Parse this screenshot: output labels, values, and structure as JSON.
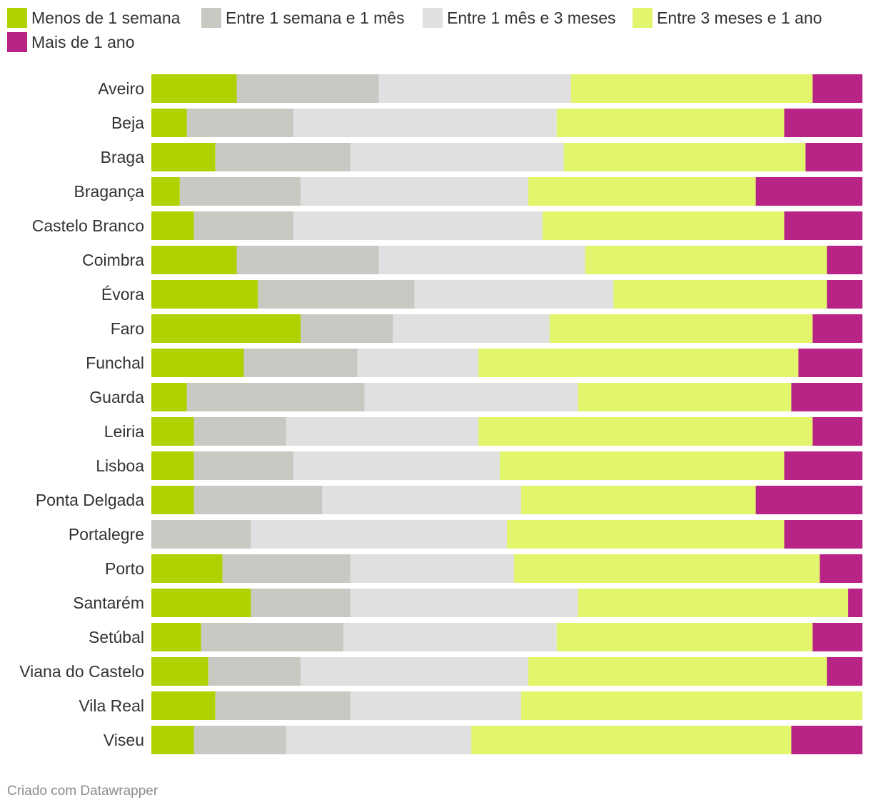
{
  "chart_data": {
    "type": "bar",
    "orientation": "horizontal",
    "stacked": true,
    "normalized_percent": true,
    "xlim": [
      0,
      100
    ],
    "legend_position": "top-left",
    "categories": [
      "Aveiro",
      "Beja",
      "Braga",
      "Bragança",
      "Castelo Branco",
      "Coimbra",
      "Évora",
      "Faro",
      "Funchal",
      "Guarda",
      "Leiria",
      "Lisboa",
      "Ponta Delgada",
      "Portalegre",
      "Porto",
      "Santarém",
      "Setúbal",
      "Viana do Castelo",
      "Vila Real",
      "Viseu"
    ],
    "series": [
      {
        "name": "Menos de 1 semana",
        "color": "#afd100",
        "values": [
          12,
          5,
          9,
          4,
          6,
          12,
          15,
          21,
          13,
          5,
          6,
          6,
          6,
          0,
          10,
          14,
          7,
          8,
          9,
          6
        ]
      },
      {
        "name": "Entre 1 semana e 1 mês",
        "color": "#c9c9c4",
        "values": [
          20,
          15,
          19,
          17,
          14,
          20,
          22,
          13,
          16,
          25,
          13,
          14,
          18,
          14,
          18,
          14,
          20,
          13,
          19,
          13
        ]
      },
      {
        "name": "Entre 1 mês e 3 meses",
        "color": "#e0e0e0",
        "values": [
          27,
          37,
          30,
          32,
          35,
          29,
          28,
          22,
          17,
          30,
          27,
          29,
          28,
          36,
          23,
          32,
          30,
          32,
          24,
          26
        ]
      },
      {
        "name": "Entre 3 meses e 1 ano",
        "color": "#e2f56c",
        "values": [
          34,
          32,
          34,
          32,
          34,
          34,
          30,
          37,
          45,
          30,
          47,
          40,
          33,
          39,
          43,
          38,
          36,
          42,
          48,
          45
        ]
      },
      {
        "name": "Mais de 1 ano",
        "color": "#b82386",
        "values": [
          7,
          11,
          8,
          15,
          11,
          5,
          5,
          7,
          9,
          10,
          7,
          11,
          15,
          11,
          6,
          2,
          7,
          5,
          0,
          10
        ]
      }
    ]
  },
  "footer": {
    "credit": "Criado com Datawrapper"
  }
}
